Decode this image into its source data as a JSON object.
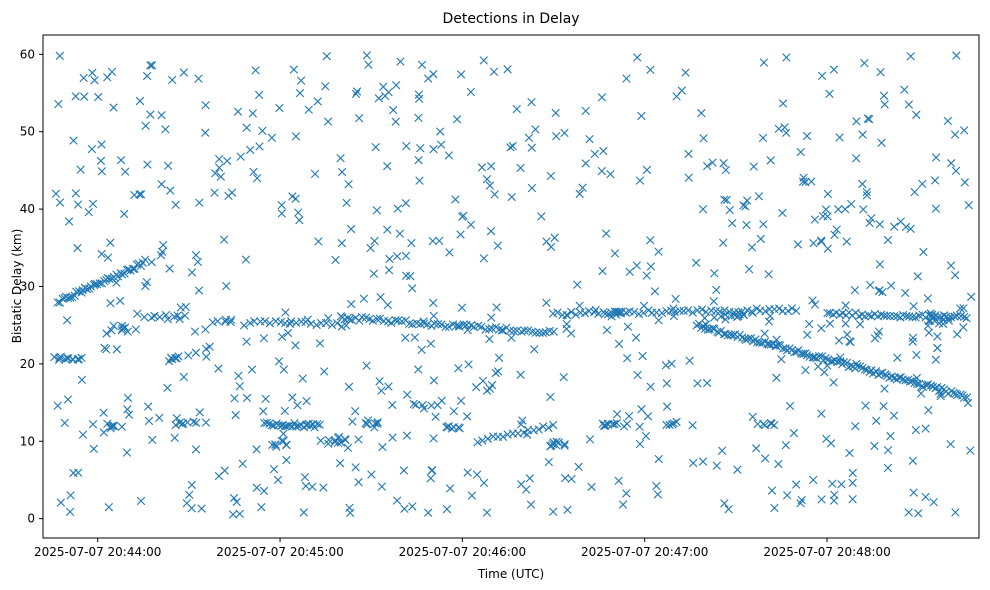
{
  "chart_data": {
    "type": "scatter",
    "title": "Detections in Delay",
    "xlabel": "Time (UTC)",
    "ylabel": "Bistatic Delay (km)",
    "x_format": "YYYY-MM-DD HH:MM:SS",
    "xlim": [
      "2025-07-07 20:43:42",
      "2025-07-07 20:48:50"
    ],
    "ylim": [
      -2.5,
      62.5
    ],
    "x_ticks": [
      "2025-07-07 20:44:00",
      "2025-07-07 20:45:00",
      "2025-07-07 20:46:00",
      "2025-07-07 20:47:00",
      "2025-07-07 20:48:00"
    ],
    "y_ticks": [
      0,
      10,
      20,
      30,
      40,
      50,
      60
    ],
    "marker": "x",
    "color": "#1f77b4",
    "grid": false,
    "legend": "none",
    "series": [
      {
        "tracks": [
          {
            "start": "2025-07-07 20:43:47",
            "end": "2025-07-07 20:44:15",
            "y_start": 28.0,
            "y_end": 33.0,
            "n": 42
          },
          {
            "start": "2025-07-07 20:47:17",
            "end": "2025-07-07 20:48:46",
            "y_start": 25.0,
            "y_end": 15.8,
            "n": 120
          },
          {
            "start": "2025-07-07 20:45:20",
            "end": "2025-07-07 20:46:30",
            "y_start": 26.0,
            "y_end": 24.0,
            "n": 60
          },
          {
            "start": "2025-07-07 20:46:30",
            "end": "2025-07-07 20:47:50",
            "y_start": 26.5,
            "y_end": 27.0,
            "n": 55
          },
          {
            "start": "2025-07-07 20:48:00",
            "end": "2025-07-07 20:48:46",
            "y_start": 26.5,
            "y_end": 26.0,
            "n": 45
          },
          {
            "start": "2025-07-07 20:44:55",
            "end": "2025-07-07 20:45:13",
            "y_start": 12.2,
            "y_end": 12.0,
            "n": 25
          },
          {
            "start": "2025-07-07 20:44:50",
            "end": "2025-07-07 20:45:22",
            "y_start": 25.5,
            "y_end": 25.0,
            "n": 20
          },
          {
            "start": "2025-07-07 20:46:05",
            "end": "2025-07-07 20:46:30",
            "y_start": 10.0,
            "y_end": 12.0,
            "n": 16
          }
        ],
        "clusters": [
          {
            "x": "2025-07-07 20:43:50",
            "y": 20.7,
            "spread_s": 4,
            "spread_km": 0.3,
            "n": 12
          },
          {
            "x": "2025-07-07 20:44:10",
            "y": 24.5,
            "spread_s": 5,
            "spread_km": 0.4,
            "n": 8
          },
          {
            "x": "2025-07-07 20:44:05",
            "y": 12.0,
            "spread_s": 3,
            "spread_km": 0.3,
            "n": 6
          },
          {
            "x": "2025-07-07 20:44:20",
            "y": 26.0,
            "spread_s": 6,
            "spread_km": 0.4,
            "n": 8
          },
          {
            "x": "2025-07-07 20:44:25",
            "y": 20.7,
            "spread_s": 4,
            "spread_km": 0.3,
            "n": 6
          },
          {
            "x": "2025-07-07 20:44:30",
            "y": 12.3,
            "spread_s": 4,
            "spread_km": 0.2,
            "n": 6
          },
          {
            "x": "2025-07-07 20:44:40",
            "y": 25.5,
            "spread_s": 4,
            "spread_km": 0.4,
            "n": 6
          },
          {
            "x": "2025-07-07 20:45:00",
            "y": 9.6,
            "spread_s": 4,
            "spread_km": 0.4,
            "n": 8
          },
          {
            "x": "2025-07-07 20:45:20",
            "y": 10.0,
            "spread_s": 5,
            "spread_km": 0.4,
            "n": 10
          },
          {
            "x": "2025-07-07 20:45:30",
            "y": 12.2,
            "spread_s": 4,
            "spread_km": 0.2,
            "n": 6
          },
          {
            "x": "2025-07-07 20:45:50",
            "y": 14.5,
            "spread_s": 5,
            "spread_km": 0.3,
            "n": 6
          },
          {
            "x": "2025-07-07 20:45:55",
            "y": 11.8,
            "spread_s": 4,
            "spread_km": 0.2,
            "n": 6
          },
          {
            "x": "2025-07-07 20:46:30",
            "y": 9.7,
            "spread_s": 4,
            "spread_km": 0.3,
            "n": 8
          },
          {
            "x": "2025-07-07 20:46:50",
            "y": 12.2,
            "spread_s": 6,
            "spread_km": 0.3,
            "n": 10
          },
          {
            "x": "2025-07-07 20:47:10",
            "y": 12.2,
            "spread_s": 4,
            "spread_km": 0.2,
            "n": 6
          },
          {
            "x": "2025-07-07 20:47:40",
            "y": 12.2,
            "spread_s": 3,
            "spread_km": 0.2,
            "n": 6
          },
          {
            "x": "2025-07-07 20:47:30",
            "y": 26.3,
            "spread_s": 6,
            "spread_km": 0.4,
            "n": 10
          },
          {
            "x": "2025-07-07 20:48:35",
            "y": 25.5,
            "spread_s": 6,
            "spread_km": 1.0,
            "n": 12
          },
          {
            "x": "2025-07-07 20:46:50",
            "y": 26.7,
            "spread_s": 6,
            "spread_km": 0.4,
            "n": 8
          }
        ],
        "scatter_background": {
          "start": "2025-07-07 20:43:45",
          "end": "2025-07-07 20:48:48",
          "y_range": [
            0.5,
            59.9
          ],
          "n": 700
        }
      }
    ]
  }
}
